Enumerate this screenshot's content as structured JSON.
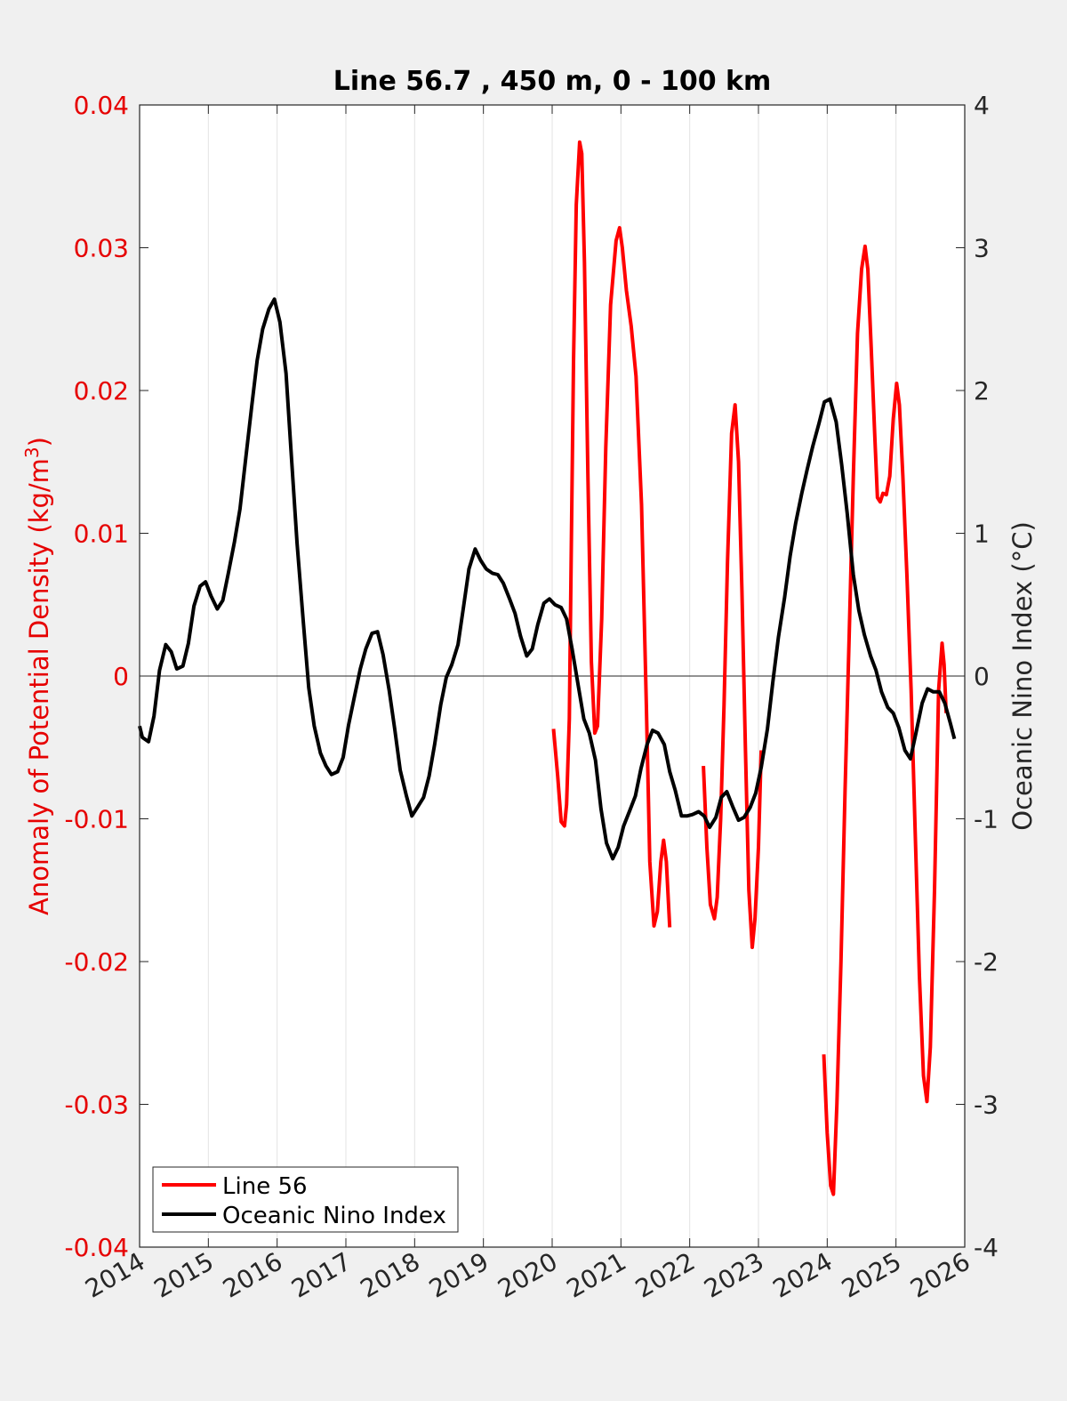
{
  "chart_data": {
    "type": "line",
    "title": "Line 56.7 , 450 m, 0 - 100 km",
    "xlabel": "",
    "ylabel_left": "Anomaly of Potential Density (kg/m",
    "ylabel_left_sup": "3",
    "ylabel_left_close": ")",
    "ylabel_right": "Oceanic Nino Index (°C)",
    "xlim": [
      2014,
      2026
    ],
    "ylim_left": [
      -0.04,
      0.04
    ],
    "ylim_right": [
      -4,
      4
    ],
    "grid": "vertical",
    "legend_position": "bottom-left",
    "colors": {
      "left_axis": "#e60000",
      "line56": "#ff0000",
      "oni": "#000000",
      "axes": "#262626",
      "background": "#f0f0f0",
      "plot_bg": "#ffffff"
    },
    "x_ticks": [
      "2014",
      "2015",
      "2016",
      "2017",
      "2018",
      "2019",
      "2020",
      "2021",
      "2022",
      "2023",
      "2024",
      "2025",
      "2026"
    ],
    "y_ticks_left": [
      "-0.04",
      "-0.03",
      "-0.02",
      "-0.01",
      "0",
      "0.01",
      "0.02",
      "0.03",
      "0.04"
    ],
    "y_ticks_right": [
      "-4",
      "-3",
      "-2",
      "-1",
      "0",
      "1",
      "2",
      "3",
      "4"
    ],
    "series": [
      {
        "name": "Line 56",
        "axis": "left",
        "segments": [
          [
            [
              2020.02,
              -0.0037
            ],
            [
              2020.08,
              -0.007
            ],
            [
              2020.13,
              -0.0102
            ],
            [
              2020.18,
              -0.0105
            ],
            [
              2020.21,
              -0.009
            ],
            [
              2020.25,
              -0.003
            ],
            [
              2020.28,
              0.01
            ],
            [
              2020.31,
              0.022
            ],
            [
              2020.35,
              0.033
            ],
            [
              2020.4,
              0.0374
            ],
            [
              2020.43,
              0.0366
            ],
            [
              2020.47,
              0.029
            ],
            [
              2020.52,
              0.014
            ],
            [
              2020.57,
              0.001
            ],
            [
              2020.62,
              -0.004
            ],
            [
              2020.66,
              -0.0035
            ],
            [
              2020.72,
              0.004
            ],
            [
              2020.78,
              0.016
            ],
            [
              2020.85,
              0.026
            ],
            [
              2020.93,
              0.0305
            ],
            [
              2020.98,
              0.0314
            ],
            [
              2021.02,
              0.03
            ],
            [
              2021.08,
              0.027
            ],
            [
              2021.15,
              0.0245
            ],
            [
              2021.22,
              0.021
            ],
            [
              2021.3,
              0.012
            ],
            [
              2021.37,
              -0.002
            ],
            [
              2021.42,
              -0.013
            ],
            [
              2021.48,
              -0.0175
            ],
            [
              2021.53,
              -0.0165
            ],
            [
              2021.58,
              -0.013
            ],
            [
              2021.62,
              -0.0115
            ],
            [
              2021.66,
              -0.013
            ],
            [
              2021.71,
              -0.0176
            ]
          ],
          [
            [
              2022.2,
              -0.0063
            ],
            [
              2022.25,
              -0.012
            ],
            [
              2022.3,
              -0.016
            ],
            [
              2022.36,
              -0.017
            ],
            [
              2022.4,
              -0.0155
            ],
            [
              2022.45,
              -0.01
            ],
            [
              2022.5,
              -0.002
            ],
            [
              2022.55,
              0.008
            ],
            [
              2022.61,
              0.017
            ],
            [
              2022.66,
              0.019
            ],
            [
              2022.71,
              0.015
            ],
            [
              2022.76,
              0.006
            ],
            [
              2022.81,
              -0.005
            ],
            [
              2022.86,
              -0.015
            ],
            [
              2022.91,
              -0.019
            ],
            [
              2022.95,
              -0.017
            ],
            [
              2023.0,
              -0.012
            ],
            [
              2023.04,
              -0.0052
            ]
          ],
          [
            [
              2023.95,
              -0.0265
            ],
            [
              2024.0,
              -0.032
            ],
            [
              2024.05,
              -0.0357
            ],
            [
              2024.09,
              -0.0363
            ],
            [
              2024.14,
              -0.03
            ],
            [
              2024.2,
              -0.02
            ],
            [
              2024.26,
              -0.008
            ],
            [
              2024.32,
              0.003
            ],
            [
              2024.38,
              0.014
            ],
            [
              2024.44,
              0.024
            ],
            [
              2024.5,
              0.0285
            ],
            [
              2024.55,
              0.0301
            ],
            [
              2024.59,
              0.0285
            ],
            [
              2024.64,
              0.023
            ],
            [
              2024.69,
              0.017
            ],
            [
              2024.73,
              0.0125
            ],
            [
              2024.77,
              0.0122
            ],
            [
              2024.81,
              0.0128
            ],
            [
              2024.86,
              0.0127
            ],
            [
              2024.91,
              0.014
            ],
            [
              2024.96,
              0.018
            ],
            [
              2025.01,
              0.0205
            ],
            [
              2025.05,
              0.019
            ],
            [
              2025.1,
              0.014
            ],
            [
              2025.16,
              0.007
            ],
            [
              2025.22,
              -0.001
            ],
            [
              2025.28,
              -0.011
            ],
            [
              2025.34,
              -0.021
            ],
            [
              2025.4,
              -0.028
            ],
            [
              2025.45,
              -0.0298
            ],
            [
              2025.5,
              -0.026
            ],
            [
              2025.56,
              -0.015
            ],
            [
              2025.62,
              -0.001
            ],
            [
              2025.67,
              0.0023
            ],
            [
              2025.7,
              0.0008
            ],
            [
              2025.73,
              -0.0026
            ]
          ]
        ]
      },
      {
        "name": "Oceanic Nino Index",
        "axis": "right",
        "segments": [
          [
            [
              2014.0,
              -0.35
            ],
            [
              2014.04,
              -0.43
            ],
            [
              2014.13,
              -0.46
            ],
            [
              2014.21,
              -0.28
            ],
            [
              2014.29,
              0.04
            ],
            [
              2014.38,
              0.22
            ],
            [
              2014.46,
              0.17
            ],
            [
              2014.54,
              0.05
            ],
            [
              2014.63,
              0.07
            ],
            [
              2014.71,
              0.23
            ],
            [
              2014.79,
              0.49
            ],
            [
              2014.88,
              0.63
            ],
            [
              2014.96,
              0.66
            ],
            [
              2015.04,
              0.56
            ],
            [
              2015.13,
              0.47
            ],
            [
              2015.21,
              0.53
            ],
            [
              2015.29,
              0.72
            ],
            [
              2015.38,
              0.94
            ],
            [
              2015.46,
              1.17
            ],
            [
              2015.54,
              1.51
            ],
            [
              2015.63,
              1.89
            ],
            [
              2015.71,
              2.21
            ],
            [
              2015.79,
              2.43
            ],
            [
              2015.88,
              2.57
            ],
            [
              2015.96,
              2.64
            ],
            [
              2016.04,
              2.48
            ],
            [
              2016.13,
              2.12
            ],
            [
              2016.21,
              1.52
            ],
            [
              2016.29,
              0.93
            ],
            [
              2016.38,
              0.38
            ],
            [
              2016.46,
              -0.08
            ],
            [
              2016.54,
              -0.35
            ],
            [
              2016.63,
              -0.54
            ],
            [
              2016.71,
              -0.63
            ],
            [
              2016.79,
              -0.69
            ],
            [
              2016.88,
              -0.67
            ],
            [
              2016.96,
              -0.57
            ],
            [
              2017.04,
              -0.34
            ],
            [
              2017.13,
              -0.13
            ],
            [
              2017.21,
              0.05
            ],
            [
              2017.29,
              0.19
            ],
            [
              2017.38,
              0.3
            ],
            [
              2017.46,
              0.31
            ],
            [
              2017.54,
              0.15
            ],
            [
              2017.63,
              -0.1
            ],
            [
              2017.71,
              -0.37
            ],
            [
              2017.79,
              -0.66
            ],
            [
              2017.88,
              -0.84
            ],
            [
              2017.96,
              -0.98
            ],
            [
              2018.04,
              -0.92
            ],
            [
              2018.13,
              -0.85
            ],
            [
              2018.21,
              -0.7
            ],
            [
              2018.29,
              -0.48
            ],
            [
              2018.38,
              -0.2
            ],
            [
              2018.46,
              -0.01
            ],
            [
              2018.54,
              0.08
            ],
            [
              2018.63,
              0.22
            ],
            [
              2018.71,
              0.48
            ],
            [
              2018.79,
              0.75
            ],
            [
              2018.88,
              0.89
            ],
            [
              2018.96,
              0.81
            ],
            [
              2019.04,
              0.75
            ],
            [
              2019.13,
              0.72
            ],
            [
              2019.21,
              0.71
            ],
            [
              2019.29,
              0.65
            ],
            [
              2019.38,
              0.54
            ],
            [
              2019.46,
              0.44
            ],
            [
              2019.54,
              0.28
            ],
            [
              2019.63,
              0.14
            ],
            [
              2019.71,
              0.19
            ],
            [
              2019.79,
              0.36
            ],
            [
              2019.88,
              0.51
            ],
            [
              2019.96,
              0.54
            ],
            [
              2020.04,
              0.5
            ],
            [
              2020.13,
              0.48
            ],
            [
              2020.21,
              0.4
            ],
            [
              2020.29,
              0.19
            ],
            [
              2020.38,
              -0.07
            ],
            [
              2020.46,
              -0.3
            ],
            [
              2020.54,
              -0.4
            ],
            [
              2020.63,
              -0.59
            ],
            [
              2020.71,
              -0.93
            ],
            [
              2020.79,
              -1.17
            ],
            [
              2020.88,
              -1.28
            ],
            [
              2020.96,
              -1.2
            ],
            [
              2021.04,
              -1.05
            ],
            [
              2021.13,
              -0.94
            ],
            [
              2021.21,
              -0.84
            ],
            [
              2021.29,
              -0.65
            ],
            [
              2021.38,
              -0.48
            ],
            [
              2021.46,
              -0.38
            ],
            [
              2021.54,
              -0.4
            ],
            [
              2021.63,
              -0.48
            ],
            [
              2021.71,
              -0.67
            ],
            [
              2021.79,
              -0.8
            ],
            [
              2021.88,
              -0.98
            ],
            [
              2021.96,
              -0.98
            ],
            [
              2022.04,
              -0.97
            ],
            [
              2022.13,
              -0.95
            ],
            [
              2022.21,
              -0.98
            ],
            [
              2022.29,
              -1.06
            ],
            [
              2022.38,
              -0.99
            ],
            [
              2022.46,
              -0.85
            ],
            [
              2022.54,
              -0.81
            ],
            [
              2022.63,
              -0.92
            ],
            [
              2022.71,
              -1.01
            ],
            [
              2022.79,
              -0.99
            ],
            [
              2022.88,
              -0.92
            ],
            [
              2022.96,
              -0.82
            ],
            [
              2023.04,
              -0.64
            ],
            [
              2023.13,
              -0.37
            ],
            [
              2023.21,
              -0.04
            ],
            [
              2023.29,
              0.27
            ],
            [
              2023.38,
              0.55
            ],
            [
              2023.46,
              0.84
            ],
            [
              2023.54,
              1.07
            ],
            [
              2023.63,
              1.28
            ],
            [
              2023.71,
              1.45
            ],
            [
              2023.79,
              1.61
            ],
            [
              2023.88,
              1.77
            ],
            [
              2023.96,
              1.92
            ],
            [
              2024.04,
              1.94
            ],
            [
              2024.13,
              1.78
            ],
            [
              2024.21,
              1.48
            ],
            [
              2024.29,
              1.14
            ],
            [
              2024.38,
              0.71
            ],
            [
              2024.46,
              0.46
            ],
            [
              2024.54,
              0.29
            ],
            [
              2024.63,
              0.14
            ],
            [
              2024.71,
              0.04
            ],
            [
              2024.79,
              -0.11
            ],
            [
              2024.88,
              -0.22
            ],
            [
              2024.96,
              -0.26
            ],
            [
              2025.04,
              -0.36
            ],
            [
              2025.13,
              -0.52
            ],
            [
              2025.21,
              -0.58
            ],
            [
              2025.29,
              -0.4
            ],
            [
              2025.38,
              -0.19
            ],
            [
              2025.46,
              -0.09
            ],
            [
              2025.54,
              -0.11
            ],
            [
              2025.63,
              -0.11
            ],
            [
              2025.71,
              -0.19
            ],
            [
              2025.79,
              -0.33
            ],
            [
              2025.85,
              -0.44
            ]
          ]
        ]
      }
    ]
  }
}
